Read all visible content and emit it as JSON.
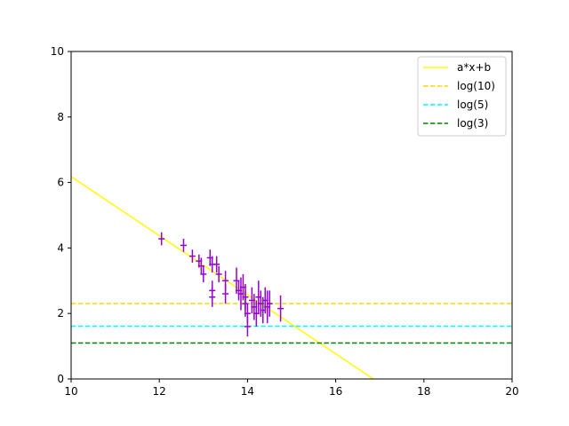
{
  "chart_data": {
    "type": "scatter",
    "title": "",
    "xlabel": "",
    "ylabel": "",
    "xlim": [
      10,
      20
    ],
    "ylim": [
      0,
      10
    ],
    "xticks": [
      "10",
      "12",
      "14",
      "16",
      "18",
      "20"
    ],
    "yticks": [
      "0",
      "2",
      "4",
      "6",
      "8",
      "10"
    ],
    "grid": false,
    "legend_position": "top-right",
    "errorbar_series": {
      "color": "#9400d3",
      "points": [
        {
          "x": 12.05,
          "y": 4.28,
          "err": 0.2
        },
        {
          "x": 12.55,
          "y": 4.08,
          "err": 0.2
        },
        {
          "x": 12.75,
          "y": 3.75,
          "err": 0.2
        },
        {
          "x": 12.9,
          "y": 3.6,
          "err": 0.2
        },
        {
          "x": 12.95,
          "y": 3.45,
          "err": 0.25
        },
        {
          "x": 13.0,
          "y": 3.2,
          "err": 0.25
        },
        {
          "x": 13.15,
          "y": 3.7,
          "err": 0.25
        },
        {
          "x": 13.2,
          "y": 3.5,
          "err": 0.25
        },
        {
          "x": 13.2,
          "y": 2.7,
          "err": 0.3
        },
        {
          "x": 13.2,
          "y": 2.5,
          "err": 0.3
        },
        {
          "x": 13.3,
          "y": 3.5,
          "err": 0.25
        },
        {
          "x": 13.35,
          "y": 3.2,
          "err": 0.25
        },
        {
          "x": 13.5,
          "y": 3.0,
          "err": 0.3
        },
        {
          "x": 13.5,
          "y": 2.6,
          "err": 0.3
        },
        {
          "x": 13.75,
          "y": 3.0,
          "err": 0.4
        },
        {
          "x": 13.8,
          "y": 2.7,
          "err": 0.3
        },
        {
          "x": 13.85,
          "y": 2.6,
          "err": 0.5
        },
        {
          "x": 13.9,
          "y": 2.8,
          "err": 0.4
        },
        {
          "x": 13.95,
          "y": 2.5,
          "err": 0.4
        },
        {
          "x": 13.95,
          "y": 2.3,
          "err": 0.4
        },
        {
          "x": 14.0,
          "y": 2.0,
          "err": 0.3
        },
        {
          "x": 14.0,
          "y": 1.6,
          "err": 0.3
        },
        {
          "x": 14.1,
          "y": 2.4,
          "err": 0.4
        },
        {
          "x": 14.15,
          "y": 2.2,
          "err": 0.4
        },
        {
          "x": 14.2,
          "y": 2.0,
          "err": 0.4
        },
        {
          "x": 14.25,
          "y": 2.5,
          "err": 0.5
        },
        {
          "x": 14.3,
          "y": 2.3,
          "err": 0.4
        },
        {
          "x": 14.35,
          "y": 2.1,
          "err": 0.4
        },
        {
          "x": 14.4,
          "y": 2.4,
          "err": 0.4
        },
        {
          "x": 14.45,
          "y": 2.2,
          "err": 0.5
        },
        {
          "x": 14.5,
          "y": 2.3,
          "err": 0.4
        },
        {
          "x": 14.75,
          "y": 2.15,
          "err": 0.4
        }
      ]
    },
    "series": [
      {
        "name": "a*x+b",
        "type": "line",
        "color": "#ffff00",
        "style": "solid",
        "x": [
          10,
          16.85
        ],
        "y": [
          6.18,
          0
        ]
      },
      {
        "name": "log(10)",
        "type": "hline",
        "color": "#ffd700",
        "style": "dashed",
        "y": 2.3026
      },
      {
        "name": "log(5)",
        "type": "hline",
        "color": "#00ffff",
        "style": "dashed",
        "y": 1.6094
      },
      {
        "name": "log(3)",
        "type": "hline",
        "color": "#008000",
        "style": "dashed",
        "y": 1.0986
      }
    ]
  }
}
